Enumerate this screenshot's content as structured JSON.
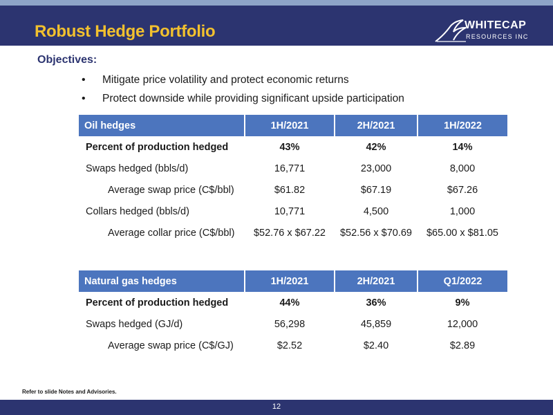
{
  "header": {
    "title": "Robust Hedge Portfolio"
  },
  "logo": {
    "name": "WHITECAP",
    "sub": "RESOURCES INC"
  },
  "objectives": {
    "heading": "Objectives:",
    "bullets": [
      "Mitigate price volatility and protect economic returns",
      "Protect downside while providing significant upside participation"
    ]
  },
  "oil": {
    "headers": [
      "Oil hedges",
      "1H/2021",
      "2H/2021",
      "1H/2022"
    ],
    "rows": [
      [
        "Percent of production hedged",
        "43%",
        "42%",
        "14%"
      ],
      [
        "Swaps hedged (bbls/d)",
        "16,771",
        "23,000",
        "8,000"
      ],
      [
        "Average swap price (C$/bbl)",
        "$61.82",
        "$67.19",
        "$67.26"
      ],
      [
        "Collars hedged (bbls/d)",
        "10,771",
        "4,500",
        "1,000"
      ],
      [
        "Average collar price (C$/bbl)",
        "$52.76 x $67.22",
        "$52.56 x $70.69",
        "$65.00 x $81.05"
      ]
    ]
  },
  "gas": {
    "headers": [
      "Natural gas hedges",
      "1H/2021",
      "2H/2021",
      "Q1/2022"
    ],
    "rows": [
      [
        "Percent of production hedged",
        "44%",
        "36%",
        "9%"
      ],
      [
        "Swaps hedged (GJ/d)",
        "56,298",
        "45,859",
        "12,000"
      ],
      [
        "Average swap price (C$/GJ)",
        "$2.52",
        "$2.40",
        "$2.89"
      ]
    ]
  },
  "footer": {
    "note": "Refer to slide Notes and Advisories.",
    "page": "12"
  },
  "colors": {
    "navy": "#2c3470",
    "gold": "#f2c12e",
    "table_header": "#4c75be"
  }
}
